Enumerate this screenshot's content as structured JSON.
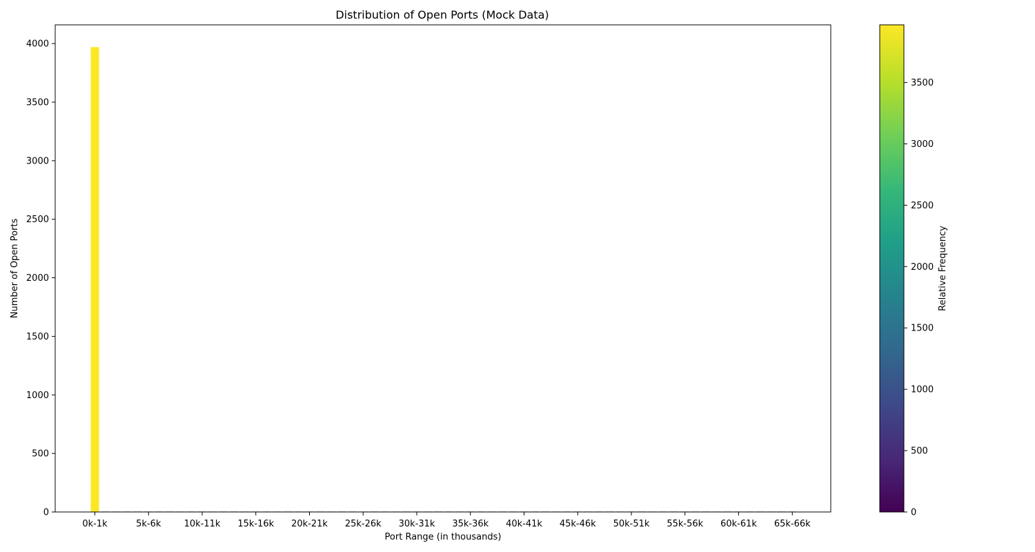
{
  "chart_data": {
    "type": "bar",
    "title": "Distribution of Open Ports (Mock Data)",
    "xlabel": "Port Range (in thousands)",
    "ylabel": "Number of Open Ports",
    "x_tick_labels": [
      "0k-1k",
      "5k-6k",
      "10k-11k",
      "15k-16k",
      "20k-21k",
      "25k-26k",
      "30k-31k",
      "35k-36k",
      "40k-41k",
      "45k-46k",
      "50k-51k",
      "55k-56k",
      "60k-61k",
      "65k-66k"
    ],
    "x_tick_every": 5,
    "bin_count": 66,
    "values": [
      3970,
      1,
      1,
      1,
      1,
      1,
      1,
      1,
      1,
      1,
      1,
      1,
      1,
      1,
      1,
      1,
      1,
      1,
      1,
      1,
      1,
      1,
      1,
      1,
      1,
      1,
      1,
      1,
      1,
      1,
      1,
      1,
      1,
      1,
      1,
      1,
      1,
      1,
      1,
      1,
      1,
      1,
      1,
      1,
      1,
      1,
      1,
      1,
      1,
      1,
      1,
      1,
      1,
      1,
      1,
      1,
      1,
      1,
      1,
      1,
      1,
      1,
      1,
      1,
      1,
      1
    ],
    "ylim": [
      0,
      4160
    ],
    "yticks": [
      0,
      500,
      1000,
      1500,
      2000,
      2500,
      3000,
      3500,
      4000
    ],
    "grid": false,
    "colormap": "viridis",
    "colorbar": {
      "label": "Relative Frequency",
      "min": 0,
      "max": 3970,
      "ticks": [
        0,
        500,
        1000,
        1500,
        2000,
        2500,
        3000,
        3500
      ]
    }
  }
}
